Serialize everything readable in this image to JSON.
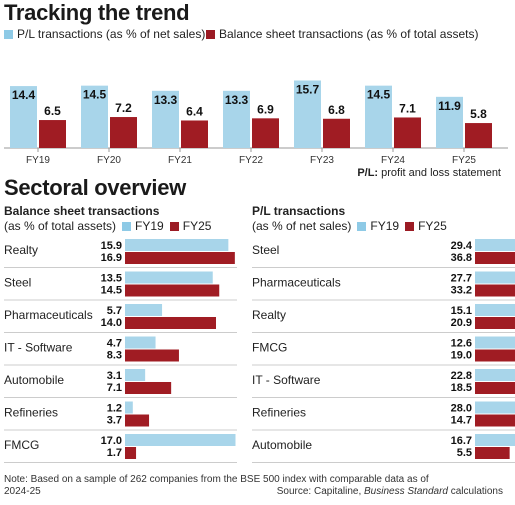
{
  "colors": {
    "fy19": "#8ecae6",
    "fy25": "#9b1b24",
    "light": "#a8d5ea",
    "dark": "#a01c23",
    "grid": "#cccccc"
  },
  "top": {
    "title": "Tracking the trend",
    "legend": [
      "P/L transactions (as % of net sales)",
      "Balance sheet transactions (as % of total assets)"
    ],
    "footnote_label": "P/L:",
    "footnote_text": " profit and loss statement"
  },
  "sectoral": {
    "title": "Sectoral overview",
    "left_title_1": "Balance sheet transactions",
    "left_title_2": "(as % of total assets)",
    "right_title_1": "P/L transactions",
    "right_title_2": "(as % of net sales)",
    "legend_fy19": "FY19",
    "legend_fy25": "FY25"
  },
  "note_line1": "Note: Based on a sample of 262 companies from the BSE 500 index with comparable data as of",
  "note_line2": "2024-25",
  "source_prefix": "Source: Capitaline, ",
  "source_italic": "Business Standard",
  "source_suffix": " calculations",
  "chart_data": [
    {
      "type": "bar",
      "title": "Tracking the trend",
      "categories": [
        "FY19",
        "FY20",
        "FY21",
        "FY22",
        "FY23",
        "FY24",
        "FY25"
      ],
      "series": [
        {
          "name": "P/L transactions (as % of net sales)",
          "values": [
            14.4,
            14.5,
            13.3,
            13.3,
            15.7,
            14.5,
            11.9
          ]
        },
        {
          "name": "Balance sheet transactions (as % of total assets)",
          "values": [
            6.5,
            7.2,
            6.4,
            6.9,
            6.8,
            7.1,
            5.8
          ]
        }
      ]
    },
    {
      "type": "bar",
      "orientation": "horizontal",
      "title": "Balance sheet transactions (as % of total assets)",
      "categories": [
        "Realty",
        "Steel",
        "Pharmaceuticals",
        "IT - Software",
        "Automobile",
        "Refineries",
        "FMCG"
      ],
      "series": [
        {
          "name": "FY19",
          "values": [
            15.9,
            13.5,
            5.7,
            4.7,
            3.1,
            1.2,
            17.0
          ]
        },
        {
          "name": "FY25",
          "values": [
            16.9,
            14.5,
            14.0,
            8.3,
            7.1,
            3.7,
            1.7
          ]
        }
      ]
    },
    {
      "type": "bar",
      "orientation": "horizontal",
      "title": "P/L transactions (as % of net sales)",
      "categories": [
        "Steel",
        "Pharmaceuticals",
        "Realty",
        "FMCG",
        "IT - Software",
        "Refineries",
        "Automobile"
      ],
      "series": [
        {
          "name": "FY19",
          "values": [
            29.4,
            27.7,
            15.1,
            12.6,
            22.8,
            28.0,
            16.7
          ]
        },
        {
          "name": "FY25",
          "values": [
            36.8,
            33.2,
            20.9,
            19.0,
            18.5,
            14.7,
            5.5
          ]
        }
      ]
    }
  ]
}
